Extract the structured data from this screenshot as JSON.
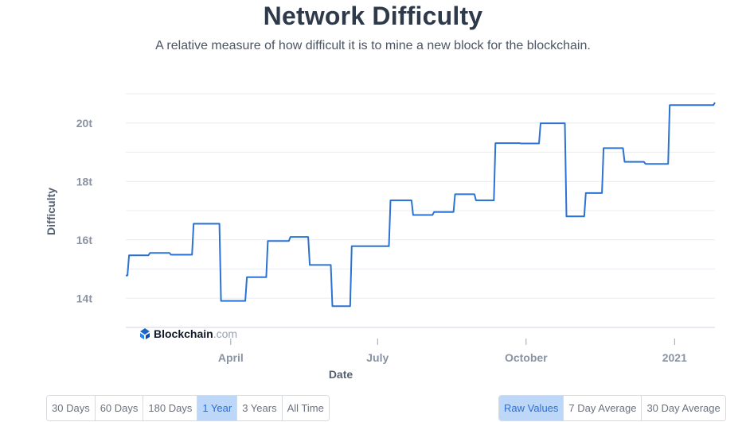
{
  "header": {
    "title": "Network Difficulty",
    "subtitle": "A relative measure of how difficult it is to mine a new block for the blockchain."
  },
  "watermark": {
    "brand": "Blockchain",
    "suffix": ".com"
  },
  "colors": {
    "line": "#2b73d2",
    "grid": "#e9ecf1",
    "axis_text": "#8a93a3",
    "active_bg": "#bcd7f7",
    "active_text": "#2b6fd6"
  },
  "range_buttons": [
    {
      "label": "30 Days",
      "active": false
    },
    {
      "label": "60 Days",
      "active": false
    },
    {
      "label": "180 Days",
      "active": false
    },
    {
      "label": "1 Year",
      "active": true
    },
    {
      "label": "3 Years",
      "active": false
    },
    {
      "label": "All Time",
      "active": false
    }
  ],
  "mode_buttons": [
    {
      "label": "Raw Values",
      "active": true
    },
    {
      "label": "7 Day Average",
      "active": false
    },
    {
      "label": "30 Day Average",
      "active": false
    }
  ],
  "chart_data": {
    "type": "line",
    "xlabel": "Date",
    "ylabel": "Difficulty",
    "x_ticks": [
      {
        "label": "April",
        "date": "2020-04-01"
      },
      {
        "label": "July",
        "date": "2020-07-01"
      },
      {
        "label": "October",
        "date": "2020-10-01"
      },
      {
        "label": "2021",
        "date": "2021-01-01"
      }
    ],
    "y_ticks": [
      {
        "label": "14t",
        "value": 14
      },
      {
        "label": "16t",
        "value": 16
      },
      {
        "label": "18t",
        "value": 18
      },
      {
        "label": "20t",
        "value": 20
      }
    ],
    "xlim": [
      "2020-01-27",
      "2021-01-26"
    ],
    "ylim": [
      13,
      21
    ],
    "grid": true,
    "series": [
      {
        "values": [
          {
            "date": "2020-01-27",
            "value": 14.78
          },
          {
            "date": "2020-01-29",
            "value": 15.47
          },
          {
            "date": "2020-02-11",
            "value": 15.55
          },
          {
            "date": "2020-02-24",
            "value": 15.49
          },
          {
            "date": "2020-03-09",
            "value": 16.55
          },
          {
            "date": "2020-03-26",
            "value": 13.91
          },
          {
            "date": "2020-04-11",
            "value": 14.72
          },
          {
            "date": "2020-04-24",
            "value": 15.96
          },
          {
            "date": "2020-05-08",
            "value": 16.1
          },
          {
            "date": "2020-05-20",
            "value": 15.14
          },
          {
            "date": "2020-06-03",
            "value": 13.73
          },
          {
            "date": "2020-06-15",
            "value": 15.78
          },
          {
            "date": "2020-07-09",
            "value": 17.35
          },
          {
            "date": "2020-07-23",
            "value": 16.85
          },
          {
            "date": "2020-08-05",
            "value": 16.95
          },
          {
            "date": "2020-08-18",
            "value": 17.56
          },
          {
            "date": "2020-08-31",
            "value": 17.35
          },
          {
            "date": "2020-09-12",
            "value": 19.31
          },
          {
            "date": "2020-09-28",
            "value": 19.3
          },
          {
            "date": "2020-10-10",
            "value": 19.99
          },
          {
            "date": "2020-10-26",
            "value": 16.8
          },
          {
            "date": "2020-11-07",
            "value": 17.6
          },
          {
            "date": "2020-11-18",
            "value": 19.14
          },
          {
            "date": "2020-12-01",
            "value": 18.67
          },
          {
            "date": "2020-12-14",
            "value": 18.6
          },
          {
            "date": "2020-12-29",
            "value": 20.61
          },
          {
            "date": "2021-01-26",
            "value": 20.7
          }
        ]
      }
    ]
  }
}
